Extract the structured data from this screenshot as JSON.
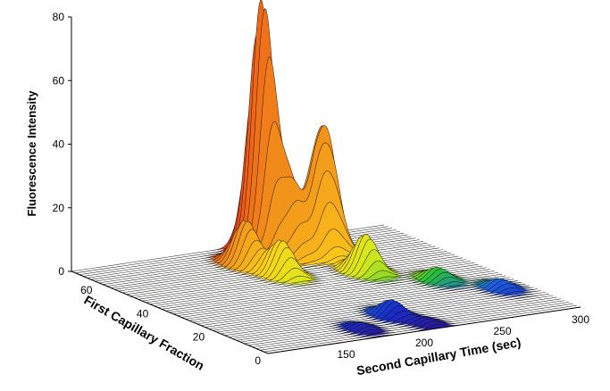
{
  "chart_data": {
    "type": "surface3d",
    "zlabel": "Fluorescence Intensity",
    "xlabel": "Second Capillary Time (sec)",
    "ylabel": "First Capillary Fraction",
    "zlim": [
      0,
      80
    ],
    "z_ticks": [
      "0",
      "20",
      "40",
      "60",
      "80"
    ],
    "x_ticks": [
      "150",
      "200",
      "250",
      "300"
    ],
    "y_ticks": [
      "0",
      "20",
      "40",
      "60"
    ],
    "grid": false,
    "colormap": [
      "#2a1a9a",
      "#1a2cc8",
      "#1d63e0",
      "#27c23a",
      "#d8e81a",
      "#ffd21a",
      "#f08a1a",
      "#ee3a12"
    ],
    "peaks": [
      {
        "time": 171,
        "fraction": 6,
        "intensity": 2
      },
      {
        "time": 201,
        "fraction": 12,
        "intensity": 5
      },
      {
        "time": 208,
        "fraction": 3,
        "intensity": 2
      },
      {
        "time": 238,
        "fraction": 42,
        "intensity": 12
      },
      {
        "time": 195,
        "fraction": 48,
        "intensity": 11
      },
      {
        "time": 190,
        "fraction": 58,
        "intensity": 14
      },
      {
        "time": 211,
        "fraction": 64,
        "intensity": 79
      },
      {
        "time": 222,
        "fraction": 60,
        "intensity": 22
      },
      {
        "time": 236,
        "fraction": 58,
        "intensity": 26
      },
      {
        "time": 245,
        "fraction": 60,
        "intensity": 32
      },
      {
        "time": 263,
        "fraction": 30,
        "intensity": 4
      },
      {
        "time": 283,
        "fraction": 19,
        "intensity": 3
      }
    ]
  }
}
